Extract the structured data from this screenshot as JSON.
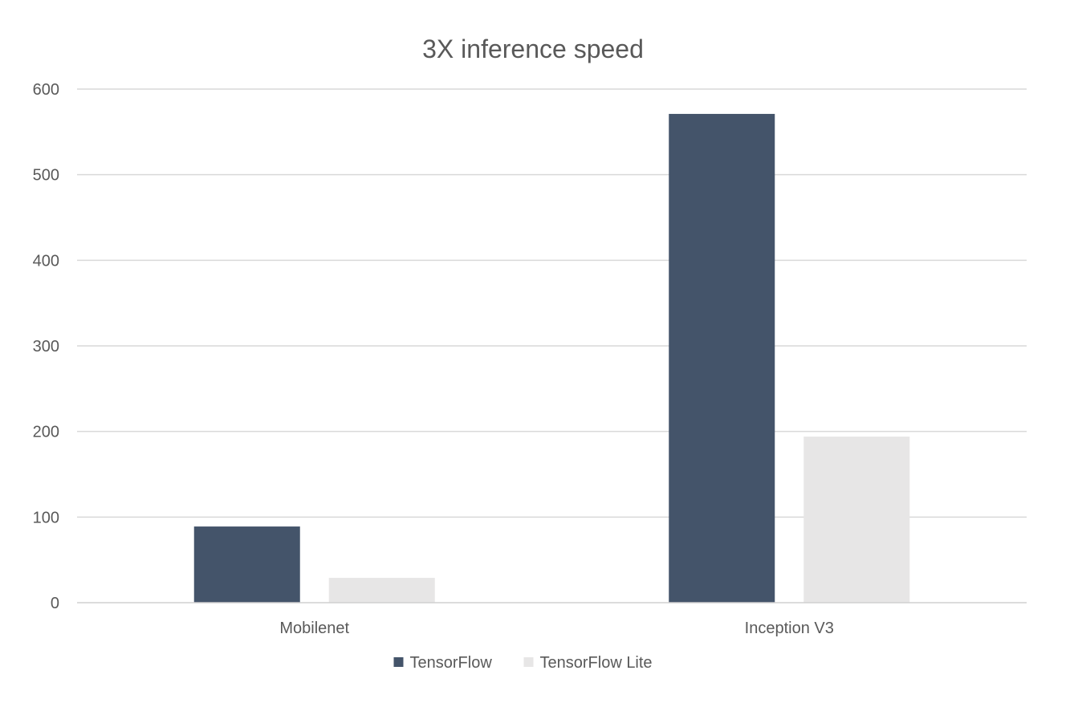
{
  "chart_data": {
    "type": "bar",
    "title": "3X inference speed",
    "xlabel": "",
    "ylabel": "",
    "categories": [
      "Mobilenet",
      "Inception V3"
    ],
    "series": [
      {
        "name": "TensorFlow",
        "color": "#44546a",
        "values": [
          89,
          571
        ]
      },
      {
        "name": "TensorFlow Lite",
        "color": "#e7e6e6",
        "values": [
          29,
          194
        ]
      }
    ],
    "ylim": [
      0,
      600
    ],
    "yticks": [
      0,
      100,
      200,
      300,
      400,
      500,
      600
    ],
    "grid": true,
    "legend_position": "bottom"
  }
}
